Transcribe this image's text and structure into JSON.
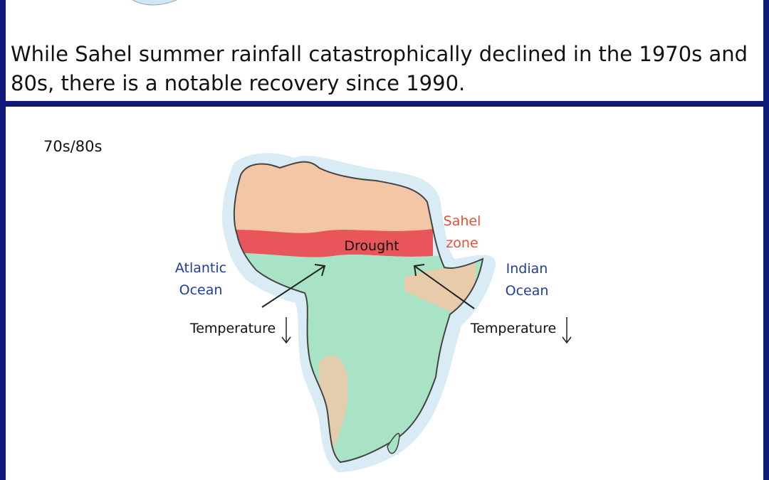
{
  "caption": "While Sahel summer rainfall catastrophically declined in the 1970s and 80s, there is a notable recovery since 1990.",
  "period_label": "70s/80s",
  "labels": {
    "sahel_line1": "Sahel",
    "sahel_line2": "zone",
    "drought": "Drought",
    "atlantic_line1": "Atlantic",
    "atlantic_line2": "Ocean",
    "indian_line1": "Indian",
    "indian_line2": "Ocean",
    "temperature_left": "Temperature",
    "temperature_right": "Temperature"
  },
  "colors": {
    "frame": "#0d1a7a",
    "ocean_text": "#1f3f9a",
    "sahel_text": "#e0533a",
    "desert_fill": "#f3c7a6",
    "sahel_band": "#e8555a",
    "vegetation_fill": "#a9e3c6",
    "ocean_halo": "#cfe7f2"
  },
  "icons": {
    "temperature_trend": "down-arrow-icon"
  }
}
